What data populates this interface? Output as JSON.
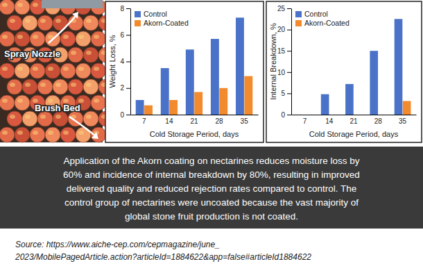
{
  "photo": {
    "labels": [
      "Spray Nozzle",
      "Brush Bed"
    ]
  },
  "chart_data": [
    {
      "type": "bar",
      "y_label": "Weight Loss, %",
      "x_label": "Cold Storage Period, days",
      "categories": [
        "7",
        "14",
        "21",
        "28",
        "35"
      ],
      "series": [
        {
          "name": "Control",
          "color": "#4a72c8",
          "values": [
            1.1,
            3.5,
            4.9,
            5.7,
            7.3
          ]
        },
        {
          "name": "Akorn-Coated",
          "color": "#f28a2e",
          "values": [
            0.7,
            1.1,
            1.7,
            2.0,
            2.9
          ]
        }
      ],
      "ylim": [
        0,
        8
      ],
      "yticks": [
        0,
        2,
        4,
        6,
        8
      ],
      "grid": false,
      "legend": "upper left"
    },
    {
      "type": "bar",
      "y_label": "Internal Breakdown, %",
      "x_label": "Cold Storage Period, days",
      "categories": [
        "7",
        "14",
        "21",
        "28",
        "35"
      ],
      "series": [
        {
          "name": "Control",
          "color": "#4a72c8",
          "values": [
            0,
            4.8,
            7.2,
            15,
            22.5
          ]
        },
        {
          "name": "Akorn-Coated",
          "color": "#f28a2e",
          "values": [
            0,
            0,
            0,
            0,
            3.2
          ]
        }
      ],
      "ylim": [
        0,
        25
      ],
      "yticks": [
        0,
        5,
        10,
        15,
        20,
        25
      ],
      "grid": false,
      "legend": "upper left"
    }
  ],
  "caption": {
    "lines": [
      "Application of the Akorn coating on nectarines reduces moisture loss by",
      "60% and incidence of internal breakdown by 80%, resulting in improved",
      "delivered quality and reduced rejection rates compared to control. The",
      "control group of nectarines were uncoated because the vast majority of",
      "global stone fruit production is not coated."
    ]
  },
  "source": {
    "lines": [
      "Source: https://www.aiche-cep.com/cepmagazine/june_",
      "2023/MobilePagedArticle.action?articleId=1884622&app=false#articleId1884622"
    ]
  }
}
